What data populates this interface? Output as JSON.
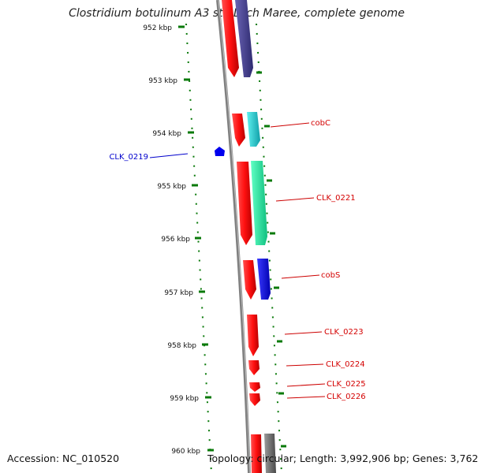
{
  "title": "Clostridium botulinum A3 str. Loch Maree, complete genome",
  "accession": "Accession: NC_010520",
  "summary": "Topology: circular; Length: 3,992,906 bp; Genes: 3,762",
  "ruler": {
    "ticks": [
      "952 kbp",
      "953 kbp",
      "954 kbp",
      "955 kbp",
      "956 kbp",
      "957 kbp",
      "958 kbp",
      "959 kbp",
      "960 kbp"
    ]
  },
  "genes": [
    {
      "label": "cobC",
      "color": "#d40000"
    },
    {
      "label": "CLK_0219",
      "color": "#0000cc"
    },
    {
      "label": "CLK_0221",
      "color": "#d40000"
    },
    {
      "label": "cobS",
      "color": "#d40000"
    },
    {
      "label": "CLK_0223",
      "color": "#d40000"
    },
    {
      "label": "CLK_0224",
      "color": "#d40000"
    },
    {
      "label": "CLK_0225",
      "color": "#d40000"
    },
    {
      "label": "CLK_0226",
      "color": "#d40000"
    }
  ],
  "colors": {
    "cds_forward": "#ff0000",
    "feature_purple": "#3f3a8c",
    "feature_cyan": "#1ec8c8",
    "feature_mint": "#22e0a0",
    "feature_blue": "#0000ee",
    "feature_gray": "#666666",
    "tick_green": "#0a7a0a",
    "backbone": "#808080"
  }
}
